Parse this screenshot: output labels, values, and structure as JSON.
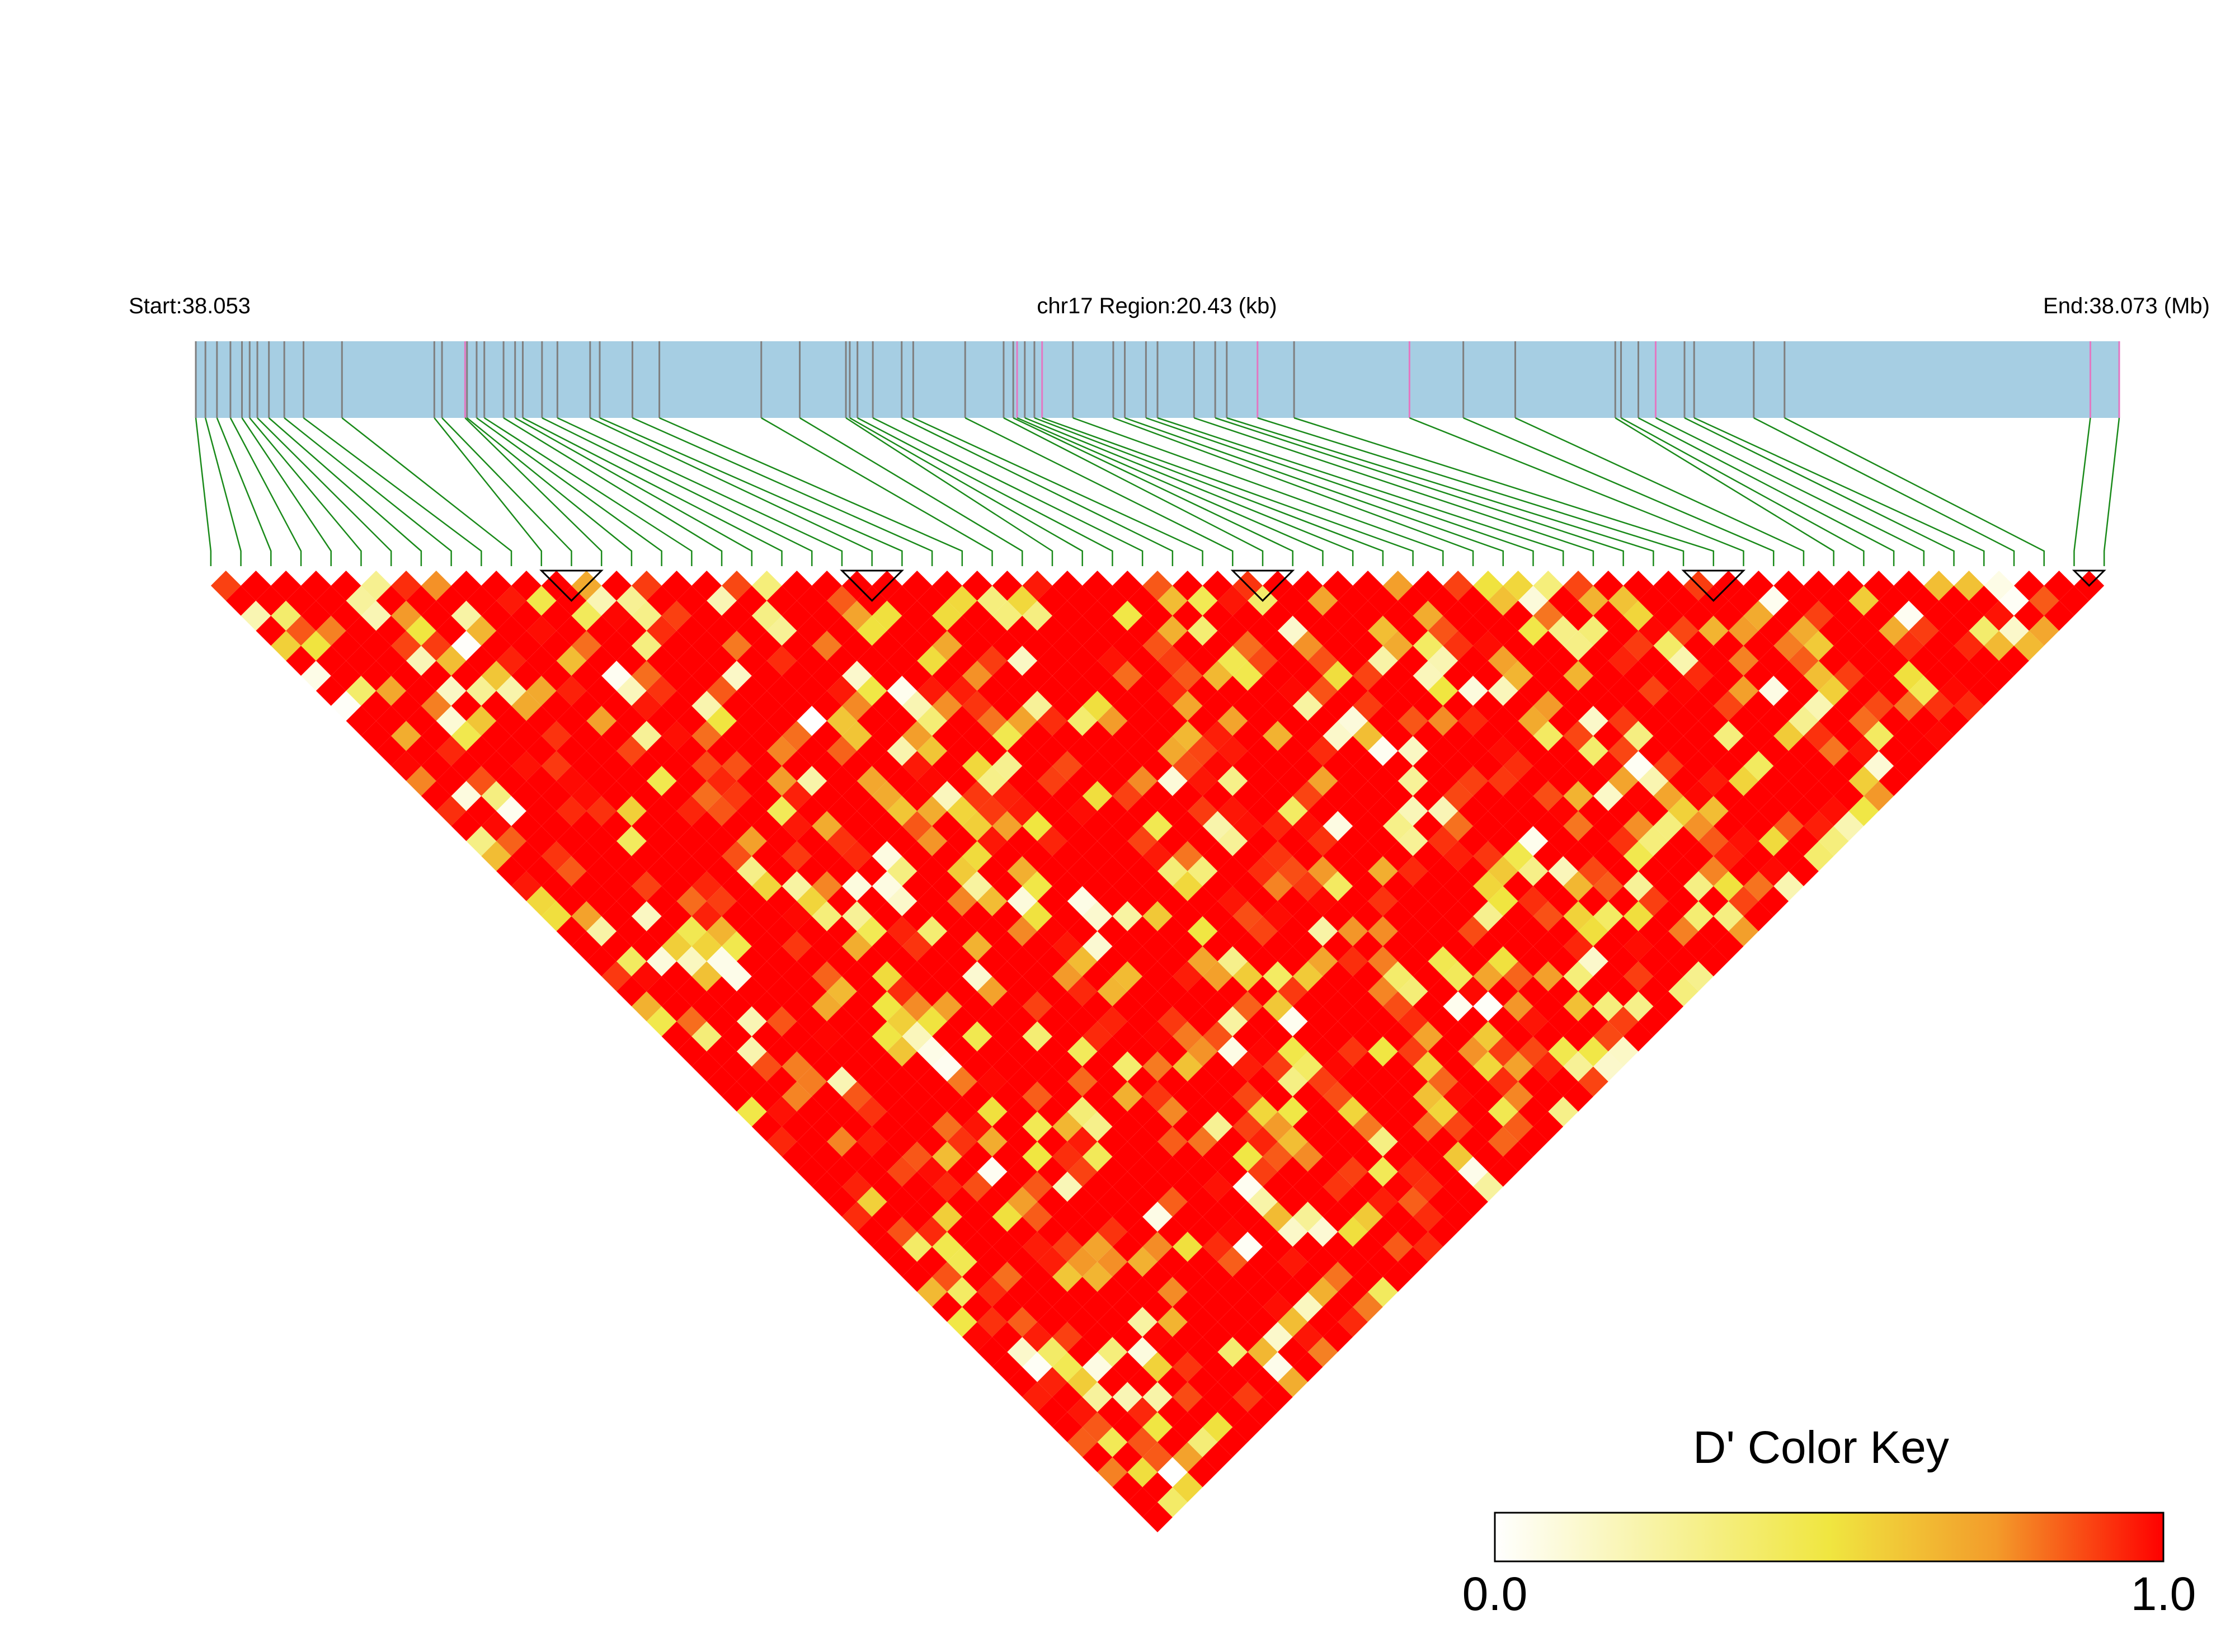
{
  "header": {
    "start_label": "Start:38.053",
    "region_label": "chr17 Region:20.43 (kb)",
    "end_label": "End:38.073 (Mb)"
  },
  "colors": {
    "track": "#a6cee3",
    "snp_tick": "#7f7f7f",
    "snp_tick_highlight": "#e377c2",
    "connector": "#1a8a1a",
    "scale_low": "#ffffff",
    "scale_mid": "#f0e640",
    "scale_orange": "#f39b2a",
    "scale_high": "#ff0000",
    "block_outline": "#000000"
  },
  "color_key": {
    "title": "D' Color Key",
    "min_label": "0.0",
    "max_label": "1.0",
    "min": 0.0,
    "max": 1.0
  },
  "chart_data": {
    "type": "heatmap",
    "description_role": "pairwise linkage disequilibrium (D') triangle",
    "region": {
      "chromosome": "chr17",
      "start_mb": 38.053,
      "end_mb": 38.073,
      "length_kb": 20.43
    },
    "n_snps": 64,
    "snp_positions_frac": [
      0.0,
      0.005,
      0.011,
      0.018,
      0.024,
      0.028,
      0.032,
      0.038,
      0.046,
      0.056,
      0.076,
      0.124,
      0.128,
      0.14,
      0.141,
      0.146,
      0.15,
      0.16,
      0.166,
      0.17,
      0.18,
      0.188,
      0.205,
      0.21,
      0.227,
      0.241,
      0.294,
      0.314,
      0.338,
      0.34,
      0.344,
      0.352,
      0.367,
      0.373,
      0.4,
      0.42,
      0.425,
      0.427,
      0.431,
      0.436,
      0.44,
      0.456,
      0.477,
      0.483,
      0.494,
      0.5,
      0.519,
      0.53,
      0.536,
      0.552,
      0.571,
      0.631,
      0.659,
      0.686,
      0.738,
      0.741,
      0.75,
      0.759,
      0.774,
      0.779,
      0.81,
      0.826,
      0.985,
      1.0
    ],
    "highlighted_snp_indices": [
      13,
      37,
      40,
      49,
      51,
      57,
      62,
      63
    ],
    "ld_blocks": [
      [
        11,
        13
      ],
      [
        21,
        23
      ],
      [
        34,
        36
      ],
      [
        49,
        51
      ],
      [
        62,
        63
      ]
    ],
    "d_prime_scale": [
      0.0,
      1.0
    ]
  }
}
